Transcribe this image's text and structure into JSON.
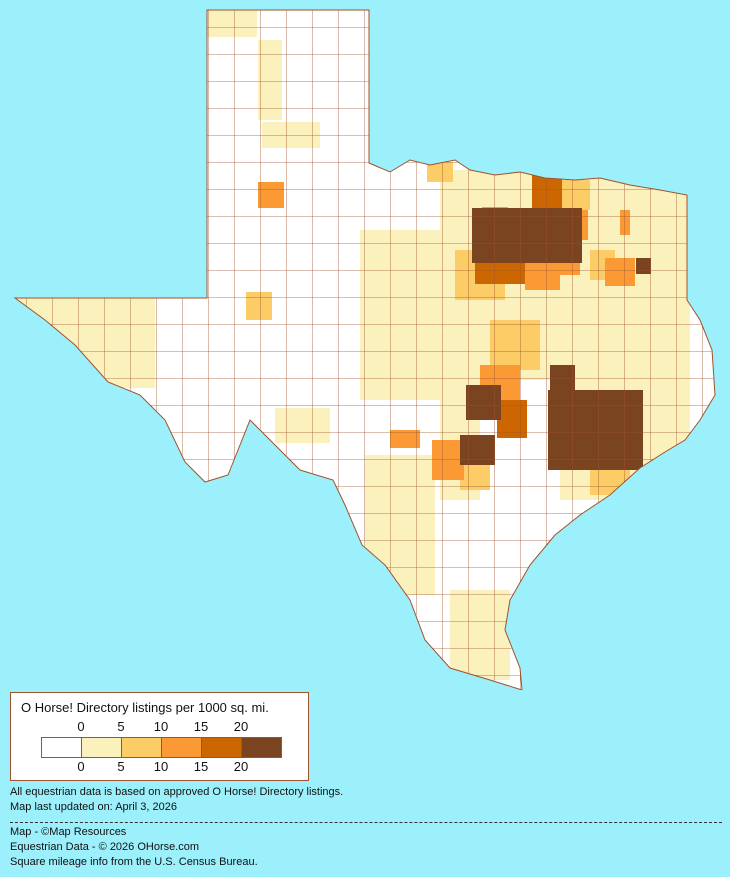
{
  "legend": {
    "title": "O Horse! Directory listings per 1000 sq. mi.",
    "ticks": [
      "0",
      "5",
      "10",
      "15",
      "20"
    ],
    "bins": [
      {
        "range": "0",
        "color": "#ffffff"
      },
      {
        "range": "0-5",
        "color": "#fbf1bc"
      },
      {
        "range": "5-10",
        "color": "#fccc66"
      },
      {
        "range": "10-15",
        "color": "#fb9a35"
      },
      {
        "range": "15-20",
        "color": "#cc6600"
      },
      {
        "range": "20+",
        "color": "#7b4420"
      }
    ]
  },
  "notes": {
    "data_basis": "All equestrian data is based on approved O Horse! Directory listings.",
    "updated": "Map last updated on: April 3, 2026"
  },
  "credits": {
    "map": "Map - ©Map Resources",
    "data": "Equestrian Data - © 2026 OHorse.com",
    "census": "Square mileage info from the U.S. Census Bureau."
  },
  "colors": {
    "background": "#9cf0fb",
    "border": "#a0522d"
  }
}
